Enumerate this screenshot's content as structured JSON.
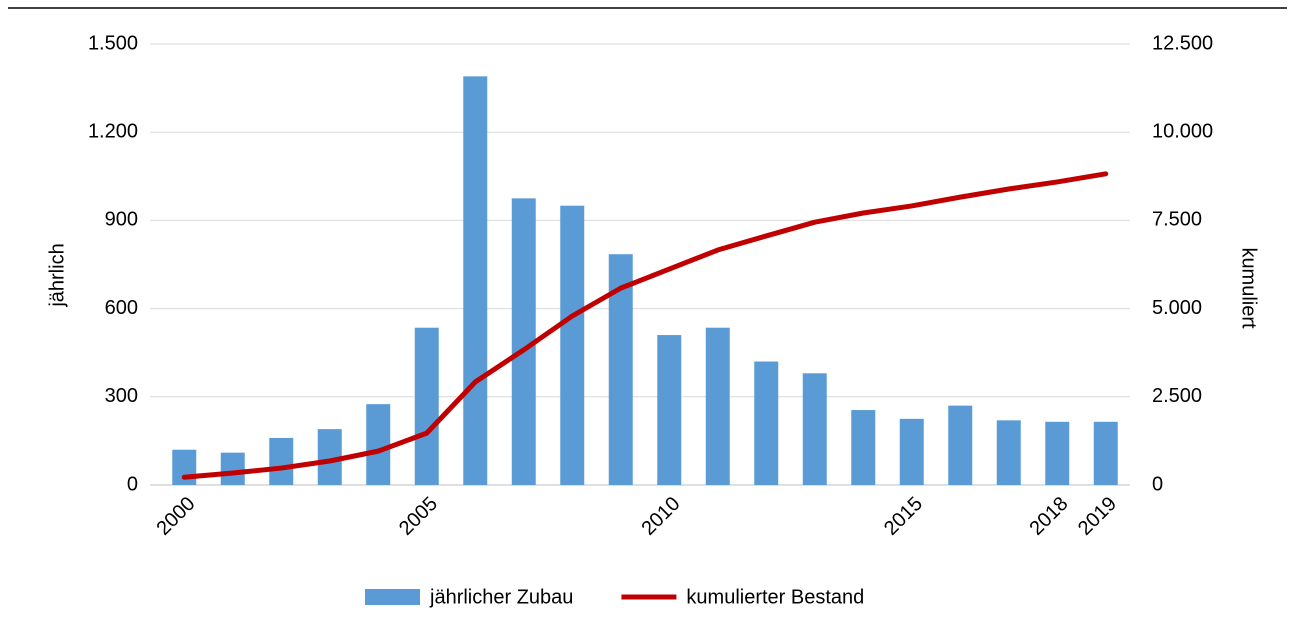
{
  "chart_data": {
    "type": "bar_line",
    "y_label": "jährlich",
    "y2_label": "kumuliert",
    "categories": [
      "2000",
      null,
      null,
      null,
      null,
      "2005",
      null,
      null,
      null,
      null,
      "2010",
      null,
      null,
      null,
      null,
      "2015",
      null,
      null,
      "2018",
      "2019"
    ],
    "series": [
      {
        "name": "jährlicher Zubau",
        "type": "bar",
        "color": "#5b9bd5",
        "values": [
          120,
          110,
          160,
          190,
          275,
          535,
          1390,
          975,
          950,
          785,
          510,
          535,
          420,
          380,
          255,
          225,
          270,
          220,
          215,
          215
        ]
      },
      {
        "name": "kumulierter Bestand",
        "type": "line",
        "axis": "y2",
        "color": "#c00000",
        "values": [
          220,
          340,
          480,
          680,
          960,
          1470,
          2920,
          3830,
          4790,
          5580,
          6120,
          6660,
          7060,
          7450,
          7710,
          7910,
          8160,
          8390,
          8590,
          8820
        ]
      }
    ],
    "ylim": [
      0,
      1500
    ],
    "yticks": [
      0,
      300,
      600,
      900,
      {
        "value": 1200,
        "label": "1.200"
      },
      {
        "value": 1500,
        "label": "1.500"
      }
    ],
    "y2lim": [
      0,
      12500
    ],
    "y2ticks": [
      0,
      {
        "value": 2500,
        "label": "2.500"
      },
      {
        "value": 5000,
        "label": "5.000"
      },
      {
        "value": 7500,
        "label": "7.500"
      },
      {
        "value": 10000,
        "label": "10.000"
      },
      {
        "value": 12500,
        "label": "12.500"
      }
    ],
    "grid": true
  }
}
